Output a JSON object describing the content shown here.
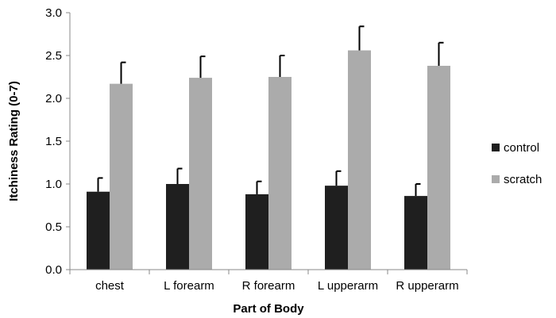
{
  "chart_data": {
    "type": "bar",
    "title": "",
    "xlabel": "Part of Body",
    "ylabel": "Itchiness Rating (0-7)",
    "ylim": [
      0,
      3.0
    ],
    "yticks": [
      "0.0",
      "0.5",
      "1.0",
      "1.5",
      "2.0",
      "2.5",
      "3.0"
    ],
    "ytick_values": [
      0,
      0.5,
      1.0,
      1.5,
      2.0,
      2.5,
      3.0
    ],
    "grid": false,
    "legend_position": "right",
    "categories": [
      "chest",
      "L forearm",
      "R forearm",
      "L upperarm",
      "R upperarm"
    ],
    "series": [
      {
        "name": "control",
        "color": "#1f1f1f",
        "values": [
          0.91,
          1.0,
          0.88,
          0.98,
          0.86
        ],
        "errors": [
          0.16,
          0.18,
          0.15,
          0.17,
          0.14
        ]
      },
      {
        "name": "scratch",
        "color": "#ababab",
        "values": [
          2.17,
          2.24,
          2.25,
          2.56,
          2.38
        ],
        "errors": [
          0.25,
          0.25,
          0.25,
          0.28,
          0.27
        ]
      }
    ]
  }
}
